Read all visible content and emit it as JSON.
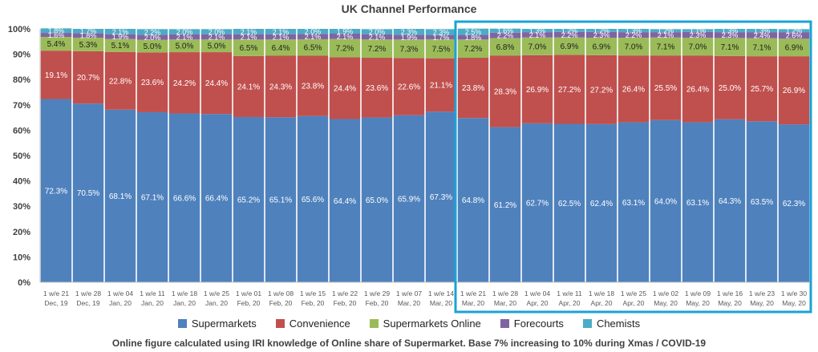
{
  "chart_data": {
    "type": "bar",
    "stacked": true,
    "title": "UK Channel Performance",
    "footnote": "Online figure calculated using IRI knowledge of Online share of Supermarket. Base 7% increasing to 10% during Xmas / COVID-19",
    "ylim": [
      0,
      100
    ],
    "yticks": [
      "0%",
      "10%",
      "20%",
      "30%",
      "40%",
      "50%",
      "60%",
      "70%",
      "80%",
      "90%",
      "100%"
    ],
    "categories": [
      [
        "1 w/e 21",
        "Dec, 19"
      ],
      [
        "1 w/e 28",
        "Dec, 19"
      ],
      [
        "1 w/e 04",
        "Jan, 20"
      ],
      [
        "1 w/e 11",
        "Jan, 20"
      ],
      [
        "1 w/e 18",
        "Jan, 20"
      ],
      [
        "1 w/e 25",
        "Jan, 20"
      ],
      [
        "1 w/e 01",
        "Feb, 20"
      ],
      [
        "1 w/e 08",
        "Feb, 20"
      ],
      [
        "1 w/e 15",
        "Feb, 20"
      ],
      [
        "1 w/e 22",
        "Feb, 20"
      ],
      [
        "1 w/e 29",
        "Feb, 20"
      ],
      [
        "1 w/e 07",
        "Mar, 20"
      ],
      [
        "1 w/e 14",
        "Mar, 20"
      ],
      [
        "1 w/e 21",
        "Mar, 20"
      ],
      [
        "1 w/e 28",
        "Mar, 20"
      ],
      [
        "1 w/e 04",
        "Apr, 20"
      ],
      [
        "1 w/e 11",
        "Apr, 20"
      ],
      [
        "1 w/e 18",
        "Apr, 20"
      ],
      [
        "1 w/e 25",
        "Apr, 20"
      ],
      [
        "1 w/e 02",
        "May, 20"
      ],
      [
        "1 w/e 09",
        "May, 20"
      ],
      [
        "1 w/e 16",
        "May, 20"
      ],
      [
        "1 w/e 23",
        "May, 20"
      ],
      [
        "1 w/e 30",
        "May, 20"
      ]
    ],
    "series": [
      {
        "name": "Supermarkets",
        "color": "#4f81bd",
        "values": [
          72.3,
          70.5,
          68.1,
          67.1,
          66.6,
          66.4,
          65.2,
          65.1,
          65.6,
          64.4,
          65.0,
          65.9,
          67.3,
          64.8,
          61.2,
          62.7,
          62.5,
          62.4,
          63.1,
          64.0,
          63.1,
          64.3,
          63.5,
          62.3
        ]
      },
      {
        "name": "Convenience",
        "color": "#c0504d",
        "values": [
          19.1,
          20.7,
          22.8,
          23.6,
          24.2,
          24.4,
          24.1,
          24.3,
          23.8,
          24.4,
          23.6,
          22.6,
          21.1,
          23.8,
          28.3,
          26.9,
          27.2,
          27.2,
          26.4,
          25.5,
          26.4,
          25.0,
          25.7,
          26.9
        ]
      },
      {
        "name": "Supermarkets Online",
        "color": "#9bbb59",
        "values": [
          5.4,
          5.3,
          5.1,
          5.0,
          5.0,
          5.0,
          6.5,
          6.4,
          6.5,
          7.2,
          7.2,
          7.3,
          7.5,
          7.2,
          6.8,
          7.0,
          6.9,
          6.9,
          7.0,
          7.1,
          7.0,
          7.1,
          7.1,
          6.9
        ]
      },
      {
        "name": "Forecourts",
        "color": "#8064a2",
        "values": [
          1.6,
          1.8,
          1.9,
          2.0,
          2.1,
          2.1,
          2.1,
          2.1,
          2.1,
          2.1,
          2.1,
          1.9,
          1.7,
          1.8,
          2.2,
          2.1,
          2.2,
          2.3,
          2.2,
          2.1,
          2.3,
          2.3,
          2.4,
          2.6
        ]
      },
      {
        "name": "Chemists",
        "color": "#4bacc6",
        "values": [
          1.8,
          1.7,
          2.1,
          2.2,
          2.0,
          2.0,
          2.1,
          2.1,
          2.0,
          1.9,
          2.0,
          2.3,
          2.3,
          2.5,
          1.6,
          1.3,
          1.2,
          1.2,
          1.3,
          1.2,
          1.1,
          1.3,
          1.3,
          1.2
        ]
      }
    ],
    "highlight_categories": [
      13,
      23
    ],
    "highlight_color": "#1aa3d6",
    "legend_position": "bottom",
    "grid": false
  }
}
